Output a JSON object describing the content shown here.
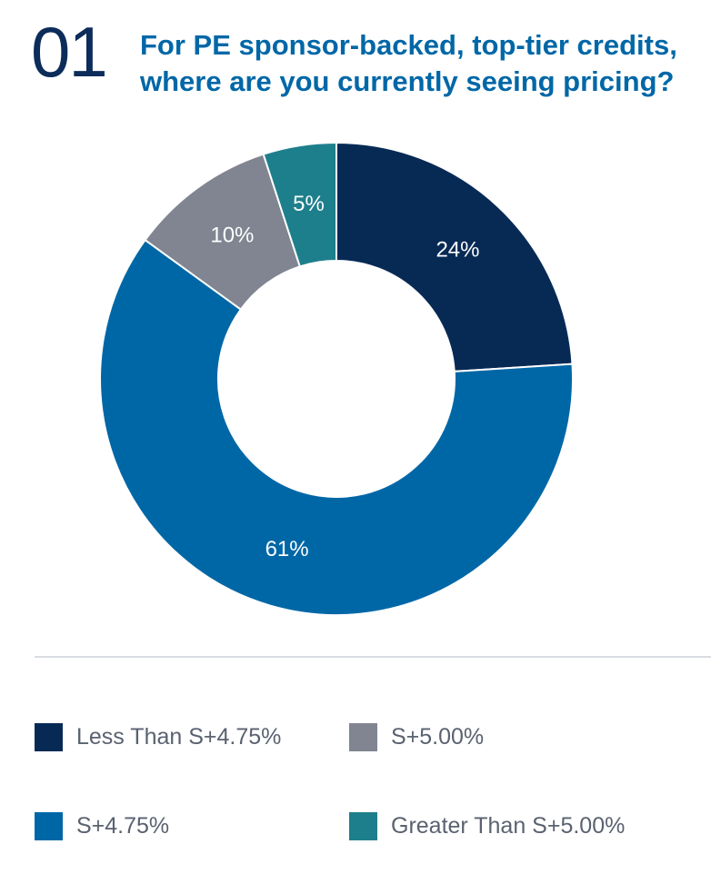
{
  "header": {
    "number": "01",
    "question_line1": "For PE sponsor-backed, top-tier credits,",
    "question_line2": "where are you currently seeing pricing?"
  },
  "colors": {
    "heading_number": "#0c2c5a",
    "heading_question": "#0067a7"
  },
  "chart_data": {
    "type": "pie",
    "variant": "donut",
    "title": "For PE sponsor-backed, top-tier credits, where are you currently seeing pricing?",
    "categories": [
      "Less Than S+4.75%",
      "S+4.75%",
      "S+5.00%",
      "Greater Than S+5.00%"
    ],
    "values": [
      24,
      61,
      10,
      5
    ],
    "value_labels": [
      "24%",
      "61%",
      "10%",
      "5%"
    ],
    "colors": [
      "#072a55",
      "#0067a7",
      "#808591",
      "#1e7f8c"
    ],
    "start": "12 o'clock",
    "direction": "clockwise",
    "legend_position": "bottom"
  },
  "legend": [
    {
      "label": "Less Than S+4.75%",
      "color": "#072a55"
    },
    {
      "label": "S+5.00%",
      "color": "#808591"
    },
    {
      "label": "S+4.75%",
      "color": "#0067a7"
    },
    {
      "label": "Greater Than S+5.00%",
      "color": "#1e7f8c"
    }
  ]
}
